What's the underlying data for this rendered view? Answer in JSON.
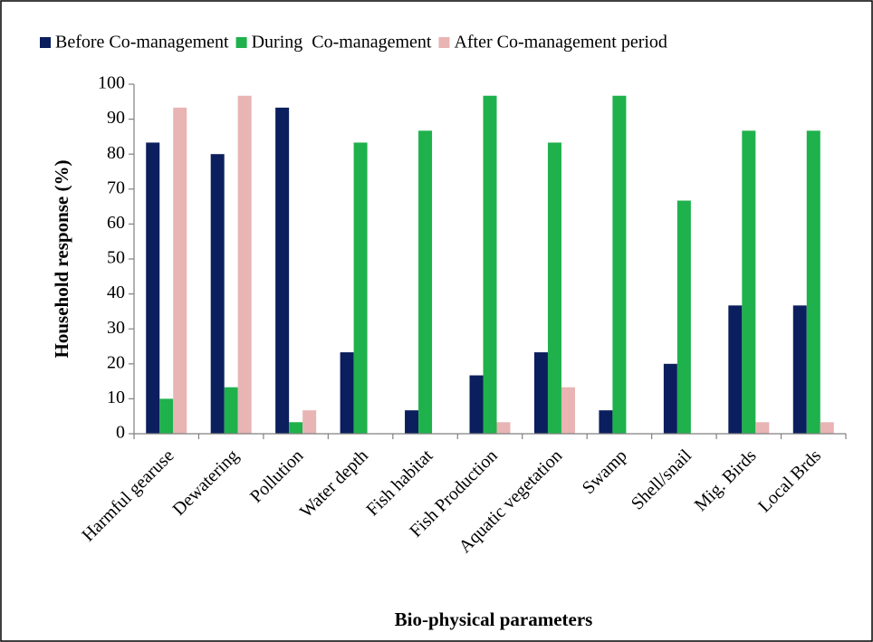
{
  "chart_data": {
    "type": "bar",
    "x_label": "Bio-physical parameters",
    "y_label": "Household response (%)",
    "categories": [
      "Harmful gearuse",
      "Dewatering",
      "Pollution",
      "Water depth",
      "Fish habitat",
      "Fish Production",
      "Aquatic vegetation",
      "Swamp",
      "Shell/snail",
      "Mig. Birds",
      "Local Brds"
    ],
    "series": [
      {
        "name": "Before Co-management",
        "color": "#0b1f5e",
        "values": [
          83.3,
          80,
          93.3,
          23.3,
          6.7,
          16.7,
          23.3,
          6.7,
          20,
          36.7,
          36.7
        ]
      },
      {
        "name": "During  Co-management",
        "color": "#1fb14c",
        "values": [
          10,
          13.3,
          3.3,
          83.3,
          86.7,
          96.7,
          83.3,
          96.7,
          66.7,
          86.7,
          86.7
        ]
      },
      {
        "name": "After Co-management period",
        "color": "#e8b4b4",
        "values": [
          93.3,
          96.7,
          6.7,
          0,
          0,
          3.3,
          13.3,
          0,
          0,
          3.3,
          3.3
        ]
      }
    ],
    "ylim": [
      0,
      100
    ],
    "yticks": [
      0,
      10,
      20,
      30,
      40,
      50,
      60,
      70,
      80,
      90,
      100
    ],
    "grid": false,
    "legend": "top"
  }
}
